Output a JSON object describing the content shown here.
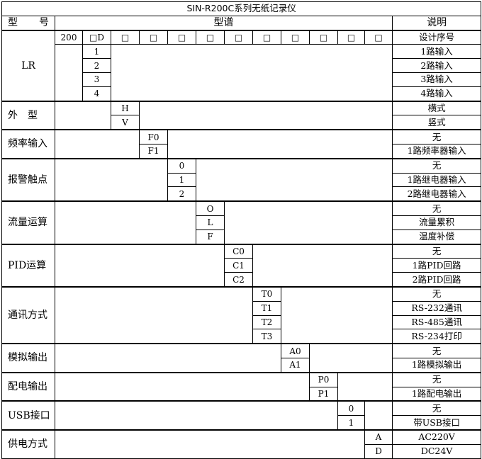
{
  "title": "SIN-R200C系列无纸记录仪",
  "header": {
    "model": [
      "型",
      "号"
    ],
    "spectrum": "型谱",
    "description": "说明"
  },
  "design_row": {
    "label": "LR",
    "codes": [
      "200",
      "□D",
      "□",
      "□",
      "□",
      "□",
      "□",
      "□",
      "□",
      "□",
      "□",
      "□"
    ],
    "description": "设计序号",
    "inputs": [
      {
        "code": "1",
        "description": "1路输入"
      },
      {
        "code": "2",
        "description": "2路输入"
      },
      {
        "code": "3",
        "description": "3路输入"
      },
      {
        "code": "4",
        "description": "4路输入"
      }
    ]
  },
  "sections": [
    {
      "label": "外　型",
      "column": 3,
      "options": [
        {
          "code": "H",
          "description": "横式"
        },
        {
          "code": "V",
          "description": "竖式"
        }
      ]
    },
    {
      "label": "频率输入",
      "column": 4,
      "options": [
        {
          "code": "F0",
          "description": "无"
        },
        {
          "code": "F1",
          "description": "1路频率器输入"
        }
      ]
    },
    {
      "label": "报警触点",
      "column": 5,
      "options": [
        {
          "code": "0",
          "description": "无"
        },
        {
          "code": "1",
          "description": "1路继电器输入"
        },
        {
          "code": "2",
          "description": "2路继电器输入"
        }
      ]
    },
    {
      "label": "流量运算",
      "column": 6,
      "options": [
        {
          "code": "O",
          "description": "无"
        },
        {
          "code": "L",
          "description": "流量累积"
        },
        {
          "code": "F",
          "description": "温度补偿"
        }
      ]
    },
    {
      "label": "PID运算",
      "column": 7,
      "options": [
        {
          "code": "C0",
          "description": "无"
        },
        {
          "code": "C1",
          "description": "1路PID回路"
        },
        {
          "code": "C2",
          "description": "2路PID回路"
        }
      ]
    },
    {
      "label": "通讯方式",
      "column": 8,
      "options": [
        {
          "code": "T0",
          "description": "无"
        },
        {
          "code": "T1",
          "description": "RS-232通讯"
        },
        {
          "code": "T2",
          "description": "RS-485通讯"
        },
        {
          "code": "T3",
          "description": "RS-234打印"
        }
      ]
    },
    {
      "label": "模拟输出",
      "column": 9,
      "options": [
        {
          "code": "A0",
          "description": "无"
        },
        {
          "code": "A1",
          "description": "1路模拟输出"
        }
      ]
    },
    {
      "label": "配电输出",
      "column": 10,
      "options": [
        {
          "code": "P0",
          "description": "无"
        },
        {
          "code": "P1",
          "description": "1路配电输出"
        }
      ]
    },
    {
      "label": "USB接口",
      "column": 11,
      "options": [
        {
          "code": "0",
          "description": "无"
        },
        {
          "code": "1",
          "description": "带USB接口"
        }
      ]
    },
    {
      "label": "供电方式",
      "column": 12,
      "options": [
        {
          "code": "A",
          "description": "AC220V"
        },
        {
          "code": "D",
          "description": "DC24V"
        }
      ]
    }
  ]
}
